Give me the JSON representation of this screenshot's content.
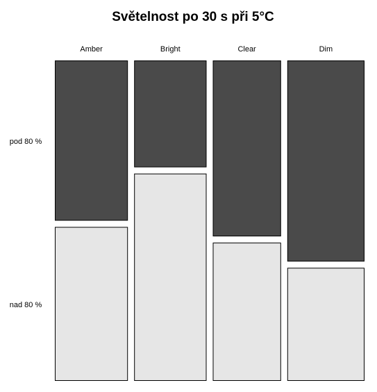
{
  "chart_data": {
    "type": "mosaic",
    "title": "Světelnost po 30 s při 5°C",
    "categories": [
      "Amber",
      "Bright",
      "Clear",
      "Dim"
    ],
    "category_shares": [
      0.243,
      0.241,
      0.227,
      0.257
    ],
    "levels": [
      "pod 80 %",
      "nad 80 %"
    ],
    "series": [
      {
        "name": "pod 80 %",
        "color": "#4a4a4a",
        "values": [
          0.51,
          0.34,
          0.56,
          0.64
        ]
      },
      {
        "name": "nad 80 %",
        "color": "#e6e6e6",
        "values": [
          0.49,
          0.66,
          0.44,
          0.36
        ]
      }
    ]
  }
}
